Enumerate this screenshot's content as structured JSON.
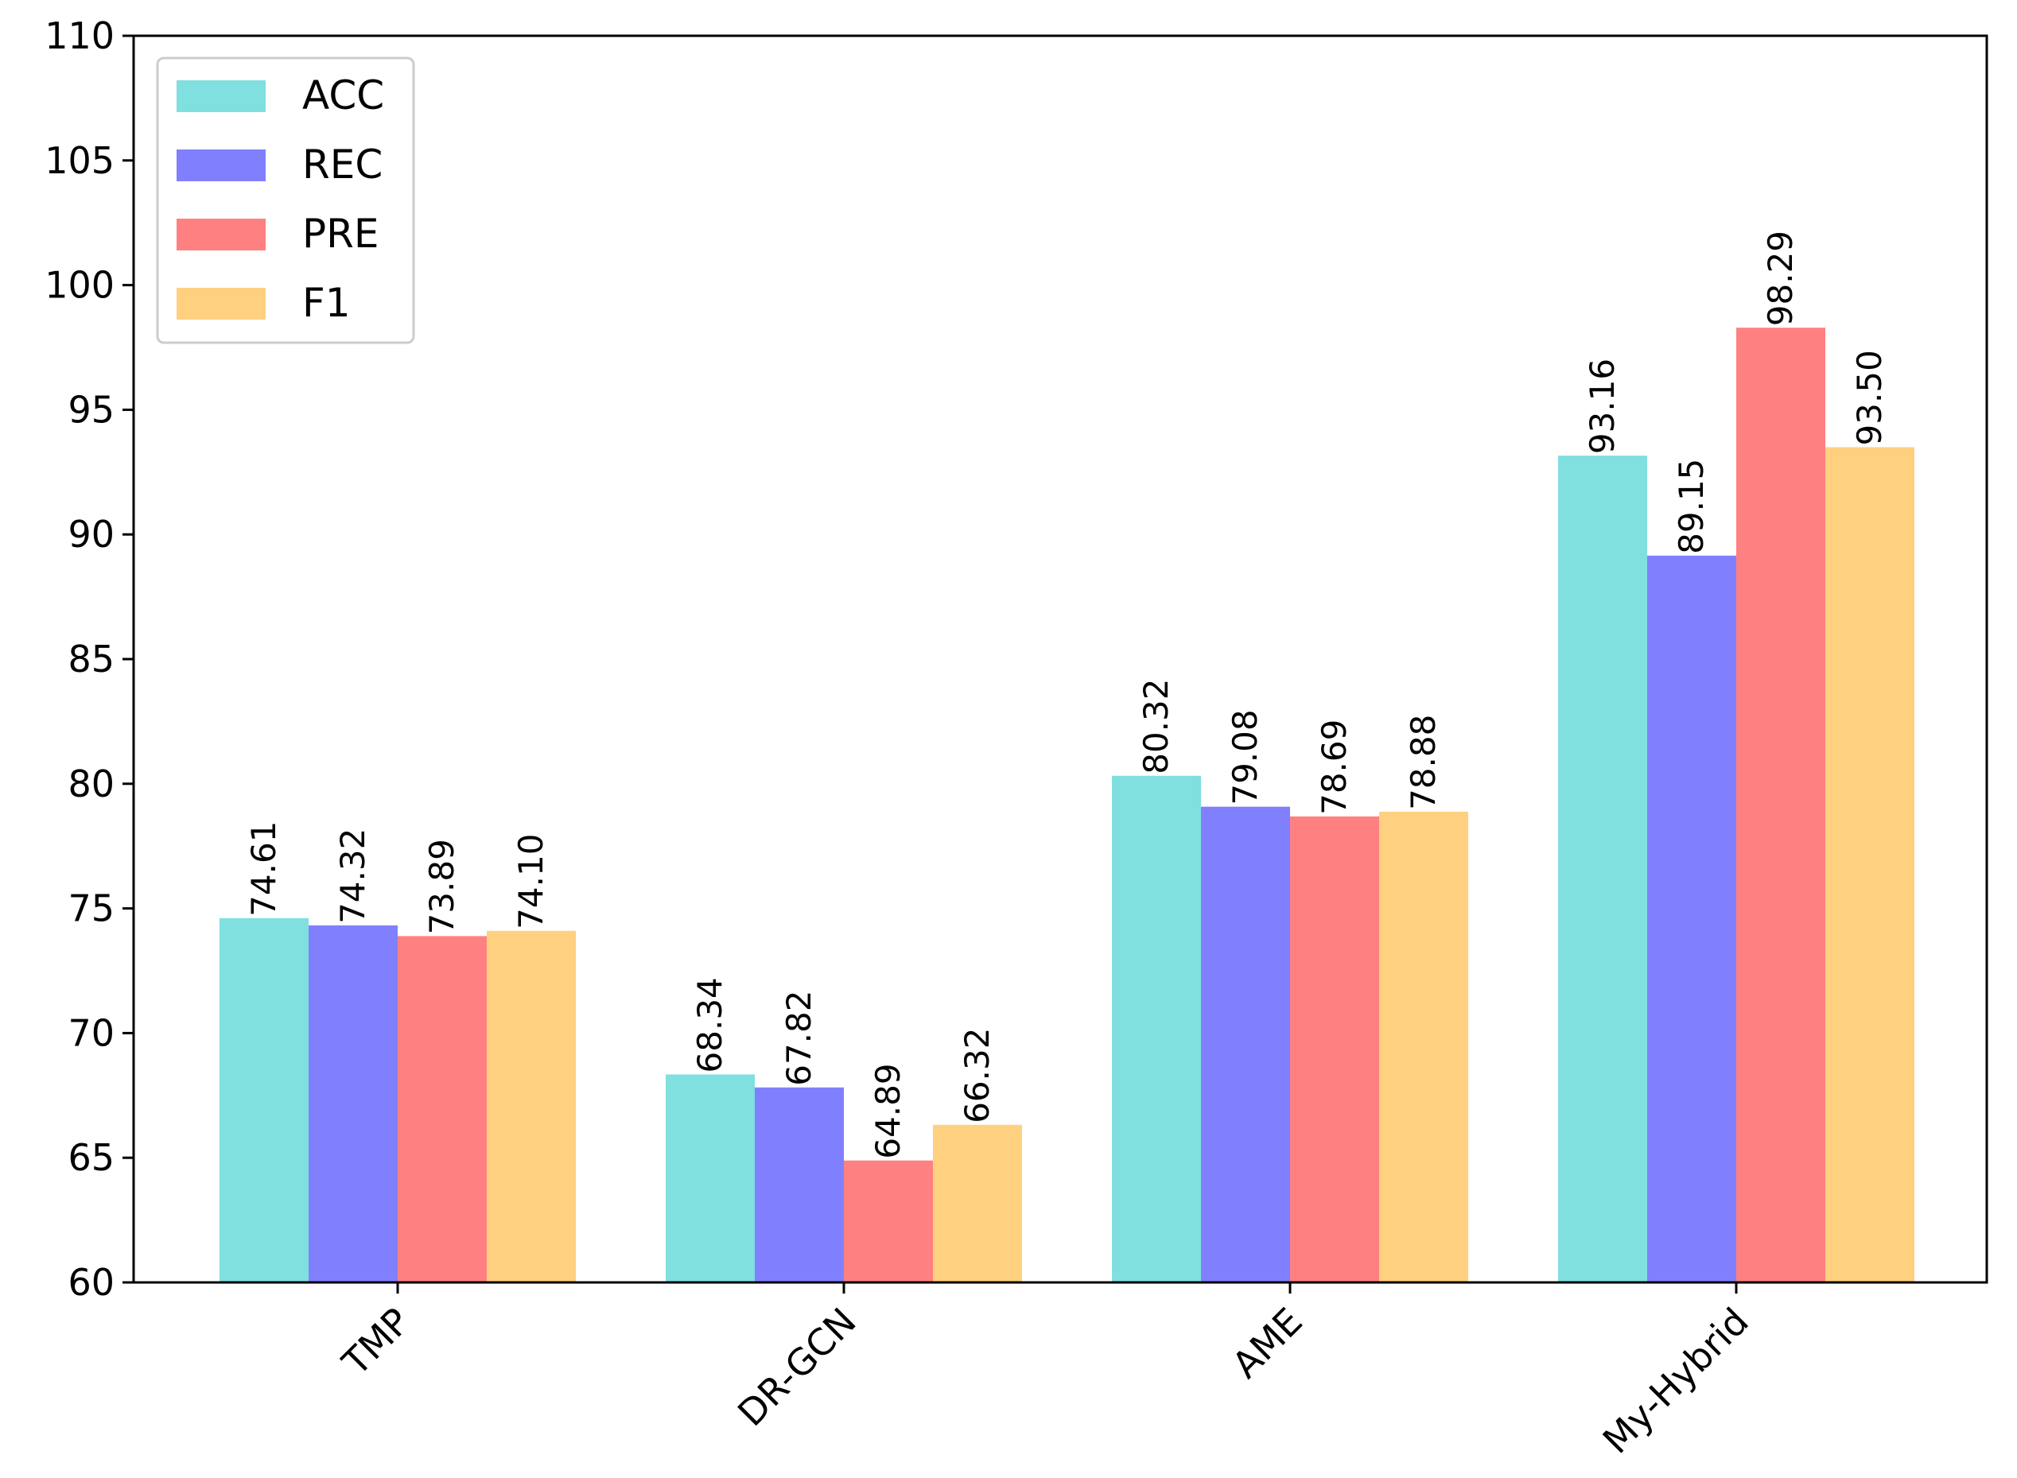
{
  "chart_data": {
    "type": "bar",
    "title": "",
    "xlabel": "",
    "ylabel": "",
    "ylim": [
      60,
      110
    ],
    "yticks": [
      "60",
      "65",
      "70",
      "75",
      "80",
      "85",
      "90",
      "95",
      "100",
      "105",
      "110"
    ],
    "categories": [
      "TMP",
      "DR-GCN",
      "AME",
      "My-Hybrid"
    ],
    "series": [
      {
        "name": "ACC",
        "color": "#80dfdf",
        "values": [
          74.61,
          68.34,
          80.32,
          93.16
        ],
        "labels": [
          "74.61",
          "68.34",
          "80.32",
          "93.16"
        ]
      },
      {
        "name": "REC",
        "color": "#8080ff",
        "values": [
          74.32,
          67.82,
          79.08,
          89.15
        ],
        "labels": [
          "74.32",
          "67.82",
          "79.08",
          "89.15"
        ]
      },
      {
        "name": "PRE",
        "color": "#ff8080",
        "values": [
          73.89,
          64.89,
          78.69,
          98.29
        ],
        "labels": [
          "73.89",
          "64.89",
          "78.69",
          "98.29"
        ]
      },
      {
        "name": "F1",
        "color": "#ffd080",
        "values": [
          74.1,
          66.32,
          78.88,
          93.5
        ],
        "labels": [
          "74.10",
          "66.32",
          "78.88",
          "93.50"
        ]
      }
    ],
    "legend": {
      "location": "top-left"
    },
    "grid": false
  }
}
